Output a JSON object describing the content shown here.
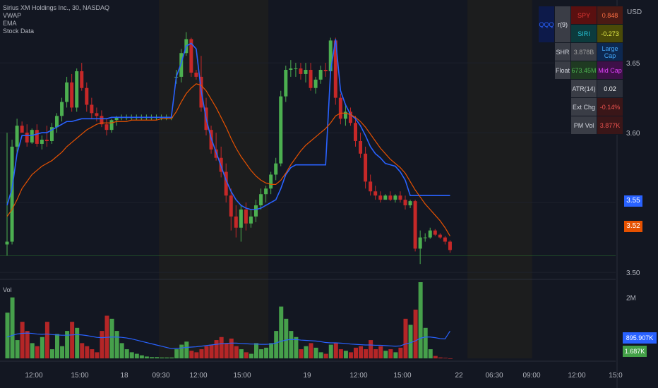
{
  "legend": {
    "symbol": "Sirius XM Holdings Inc., 30, NASDAQ",
    "indicators": [
      "VWAP",
      "EMA",
      "Stock Data"
    ],
    "volume_label": "Vol"
  },
  "currency": "USD",
  "colors": {
    "background": "#131722",
    "up": "#4caf50",
    "down": "#c62828",
    "vwap": "#2962ff",
    "ema": "#e65100",
    "grid": "#1e222d",
    "session_shade": "#1e1e1e"
  },
  "info_table": {
    "rows": [
      [
        "QQQ",
        "r(9)",
        "SPY",
        "0.848"
      ],
      [
        "",
        "",
        "SIRI",
        "-0.273"
      ],
      [
        "",
        "SHR",
        "3.878B",
        "Large Cap"
      ],
      [
        "",
        "Float",
        "673.45M",
        "Mid Cap"
      ],
      [
        "",
        "ATR(14)",
        "0.02",
        ""
      ],
      [
        "",
        "Ext Chg",
        "-0.14%",
        ""
      ],
      [
        "",
        "PM Vol",
        "3.877K",
        ""
      ]
    ]
  },
  "price_tags": {
    "vwap": "3.55",
    "last": "3.52",
    "vol_ma": "895.907K",
    "vol": "1.687K"
  },
  "chart_data": {
    "type": "candlestick",
    "title": "Sirius XM Holdings Inc., 30, NASDAQ",
    "price_axis": {
      "ticks": [
        "3.65",
        "3.60",
        "3.55",
        "3.50"
      ],
      "ylim": [
        3.495,
        3.695
      ]
    },
    "volume_axis": {
      "ticks": [
        "2M"
      ],
      "ylim": [
        0,
        2500000
      ]
    },
    "time_axis": {
      "ticks": [
        "12:00",
        "15:00",
        "18",
        "09:30",
        "12:00",
        "15:00",
        "19",
        "12:00",
        "15:00",
        "22",
        "06:30",
        "09:00",
        "12:00",
        "15:0"
      ]
    },
    "grid": true,
    "session_shade": [
      [
        31,
        53
      ],
      [
        93,
        106
      ],
      [
        145,
        158
      ]
    ],
    "candles": [
      {
        "o": 3.52,
        "h": 3.6,
        "l": 3.512,
        "c": 3.522
      },
      {
        "o": 3.522,
        "h": 3.595,
        "l": 3.52,
        "c": 3.59
      },
      {
        "o": 3.59,
        "h": 3.61,
        "l": 3.585,
        "c": 3.605
      },
      {
        "o": 3.605,
        "h": 3.608,
        "l": 3.6,
        "c": 3.6
      },
      {
        "o": 3.6,
        "h": 3.606,
        "l": 3.59,
        "c": 3.593
      },
      {
        "o": 3.593,
        "h": 3.603,
        "l": 3.592,
        "c": 3.602
      },
      {
        "o": 3.602,
        "h": 3.606,
        "l": 3.59,
        "c": 3.592
      },
      {
        "o": 3.592,
        "h": 3.598,
        "l": 3.588,
        "c": 3.595
      },
      {
        "o": 3.595,
        "h": 3.605,
        "l": 3.59,
        "c": 3.594
      },
      {
        "o": 3.594,
        "h": 3.607,
        "l": 3.592,
        "c": 3.604
      },
      {
        "o": 3.604,
        "h": 3.614,
        "l": 3.6,
        "c": 3.612
      },
      {
        "o": 3.612,
        "h": 3.625,
        "l": 3.608,
        "c": 3.622
      },
      {
        "o": 3.622,
        "h": 3.64,
        "l": 3.618,
        "c": 3.636
      },
      {
        "o": 3.636,
        "h": 3.642,
        "l": 3.615,
        "c": 3.618
      },
      {
        "o": 3.618,
        "h": 3.646,
        "l": 3.615,
        "c": 3.644
      },
      {
        "o": 3.644,
        "h": 3.65,
        "l": 3.63,
        "c": 3.632
      },
      {
        "o": 3.632,
        "h": 3.636,
        "l": 3.615,
        "c": 3.62
      },
      {
        "o": 3.62,
        "h": 3.625,
        "l": 3.61,
        "c": 3.614
      },
      {
        "o": 3.614,
        "h": 3.618,
        "l": 3.608,
        "c": 3.612
      },
      {
        "o": 3.612,
        "h": 3.616,
        "l": 3.604,
        "c": 3.606
      },
      {
        "o": 3.606,
        "h": 3.61,
        "l": 3.598,
        "c": 3.602
      },
      {
        "o": 3.602,
        "h": 3.61,
        "l": 3.6,
        "c": 3.609
      },
      {
        "o": 3.609,
        "h": 3.612,
        "l": 3.605,
        "c": 3.611
      },
      {
        "o": 3.611,
        "h": 3.613,
        "l": 3.609,
        "c": 3.611
      },
      {
        "o": 3.611,
        "h": 3.613,
        "l": 3.609,
        "c": 3.611
      },
      {
        "o": 3.611,
        "h": 3.613,
        "l": 3.609,
        "c": 3.611
      },
      {
        "o": 3.611,
        "h": 3.613,
        "l": 3.609,
        "c": 3.611
      },
      {
        "o": 3.611,
        "h": 3.613,
        "l": 3.609,
        "c": 3.611
      },
      {
        "o": 3.611,
        "h": 3.613,
        "l": 3.609,
        "c": 3.611
      },
      {
        "o": 3.611,
        "h": 3.613,
        "l": 3.609,
        "c": 3.611
      },
      {
        "o": 3.611,
        "h": 3.613,
        "l": 3.609,
        "c": 3.611
      },
      {
        "o": 3.611,
        "h": 3.613,
        "l": 3.609,
        "c": 3.611
      },
      {
        "o": 3.611,
        "h": 3.613,
        "l": 3.609,
        "c": 3.611
      },
      {
        "o": 3.611,
        "h": 3.613,
        "l": 3.609,
        "c": 3.611
      },
      {
        "o": 3.64,
        "h": 3.645,
        "l": 3.635,
        "c": 3.64
      },
      {
        "o": 3.64,
        "h": 3.66,
        "l": 3.636,
        "c": 3.657
      },
      {
        "o": 3.657,
        "h": 3.672,
        "l": 3.655,
        "c": 3.667
      },
      {
        "o": 3.667,
        "h": 3.668,
        "l": 3.64,
        "c": 3.643
      },
      {
        "o": 3.643,
        "h": 3.645,
        "l": 3.638,
        "c": 3.64
      },
      {
        "o": 3.64,
        "h": 3.655,
        "l": 3.615,
        "c": 3.618
      },
      {
        "o": 3.618,
        "h": 3.625,
        "l": 3.598,
        "c": 3.602
      },
      {
        "o": 3.602,
        "h": 3.605,
        "l": 3.585,
        "c": 3.588
      },
      {
        "o": 3.588,
        "h": 3.6,
        "l": 3.58,
        "c": 3.582
      },
      {
        "o": 3.582,
        "h": 3.59,
        "l": 3.568,
        "c": 3.572
      },
      {
        "o": 3.572,
        "h": 3.578,
        "l": 3.55,
        "c": 3.555
      },
      {
        "o": 3.555,
        "h": 3.56,
        "l": 3.53,
        "c": 3.54
      },
      {
        "o": 3.54,
        "h": 3.548,
        "l": 3.525,
        "c": 3.532
      },
      {
        "o": 3.532,
        "h": 3.548,
        "l": 3.522,
        "c": 3.545
      },
      {
        "o": 3.545,
        "h": 3.55,
        "l": 3.53,
        "c": 3.535
      },
      {
        "o": 3.535,
        "h": 3.545,
        "l": 3.532,
        "c": 3.54
      },
      {
        "o": 3.54,
        "h": 3.552,
        "l": 3.536,
        "c": 3.548
      },
      {
        "o": 3.548,
        "h": 3.56,
        "l": 3.545,
        "c": 3.556
      },
      {
        "o": 3.556,
        "h": 3.562,
        "l": 3.55,
        "c": 3.56
      },
      {
        "o": 3.56,
        "h": 3.572,
        "l": 3.556,
        "c": 3.57
      },
      {
        "o": 3.57,
        "h": 3.582,
        "l": 3.566,
        "c": 3.578
      },
      {
        "o": 3.578,
        "h": 3.63,
        "l": 3.576,
        "c": 3.626
      },
      {
        "o": 3.626,
        "h": 3.648,
        "l": 3.622,
        "c": 3.645
      },
      {
        "o": 3.645,
        "h": 3.652,
        "l": 3.64,
        "c": 3.646
      },
      {
        "o": 3.646,
        "h": 3.65,
        "l": 3.64,
        "c": 3.646
      },
      {
        "o": 3.646,
        "h": 3.65,
        "l": 3.638,
        "c": 3.642
      },
      {
        "o": 3.642,
        "h": 3.65,
        "l": 3.636,
        "c": 3.645
      },
      {
        "o": 3.645,
        "h": 3.65,
        "l": 3.63,
        "c": 3.632
      },
      {
        "o": 3.632,
        "h": 3.64,
        "l": 3.628,
        "c": 3.638
      },
      {
        "o": 3.638,
        "h": 3.648,
        "l": 3.635,
        "c": 3.645
      },
      {
        "o": 3.645,
        "h": 3.65,
        "l": 3.64,
        "c": 3.644
      },
      {
        "o": 3.644,
        "h": 3.668,
        "l": 3.642,
        "c": 3.666
      },
      {
        "o": 3.666,
        "h": 3.668,
        "l": 3.62,
        "c": 3.625
      },
      {
        "o": 3.625,
        "h": 3.628,
        "l": 3.606,
        "c": 3.61
      },
      {
        "o": 3.61,
        "h": 3.62,
        "l": 3.605,
        "c": 3.615
      },
      {
        "o": 3.615,
        "h": 3.618,
        "l": 3.605,
        "c": 3.607
      },
      {
        "o": 3.607,
        "h": 3.612,
        "l": 3.59,
        "c": 3.594
      },
      {
        "o": 3.594,
        "h": 3.6,
        "l": 3.582,
        "c": 3.585
      },
      {
        "o": 3.585,
        "h": 3.59,
        "l": 3.56,
        "c": 3.565
      },
      {
        "o": 3.565,
        "h": 3.57,
        "l": 3.555,
        "c": 3.558
      },
      {
        "o": 3.558,
        "h": 3.562,
        "l": 3.552,
        "c": 3.555
      },
      {
        "o": 3.555,
        "h": 3.558,
        "l": 3.55,
        "c": 3.552
      },
      {
        "o": 3.552,
        "h": 3.556,
        "l": 3.552,
        "c": 3.555
      },
      {
        "o": 3.555,
        "h": 3.558,
        "l": 3.551,
        "c": 3.552
      },
      {
        "o": 3.552,
        "h": 3.556,
        "l": 3.55,
        "c": 3.555
      },
      {
        "o": 3.555,
        "h": 3.558,
        "l": 3.55,
        "c": 3.552
      },
      {
        "o": 3.552,
        "h": 3.555,
        "l": 3.545,
        "c": 3.548
      },
      {
        "o": 3.548,
        "h": 3.552,
        "l": 3.546,
        "c": 3.551
      },
      {
        "o": 3.551,
        "h": 3.552,
        "l": 3.515,
        "c": 3.517
      },
      {
        "o": 3.517,
        "h": 3.53,
        "l": 3.506,
        "c": 3.525
      },
      {
        "o": 3.525,
        "h": 3.528,
        "l": 3.522,
        "c": 3.525
      },
      {
        "o": 3.525,
        "h": 3.532,
        "l": 3.524,
        "c": 3.53
      },
      {
        "o": 3.53,
        "h": 3.531,
        "l": 3.526,
        "c": 3.527
      },
      {
        "o": 3.527,
        "h": 3.528,
        "l": 3.524,
        "c": 3.525
      },
      {
        "o": 3.525,
        "h": 3.526,
        "l": 3.52,
        "c": 3.522
      },
      {
        "o": 3.522,
        "h": 3.523,
        "l": 3.514,
        "c": 3.516
      }
    ],
    "vwap": [
      3.548,
      3.56,
      3.585,
      3.598,
      3.598,
      3.598,
      3.599,
      3.6,
      3.6,
      3.602,
      3.604,
      3.606,
      3.608,
      3.608,
      3.609,
      3.61,
      3.61,
      3.61,
      3.61,
      3.61,
      3.61,
      3.611,
      3.611,
      3.611,
      3.611,
      3.611,
      3.611,
      3.611,
      3.611,
      3.611,
      3.611,
      3.611,
      3.611,
      3.611,
      3.64,
      3.65,
      3.662,
      3.664,
      3.66,
      3.63,
      3.61,
      3.596,
      3.586,
      3.576,
      3.566,
      3.558,
      3.552,
      3.548,
      3.546,
      3.545,
      3.545,
      3.546,
      3.548,
      3.55,
      3.552,
      3.56,
      3.57,
      3.575,
      3.577,
      3.577,
      3.577,
      3.577,
      3.577,
      3.577,
      3.577,
      3.644,
      3.667,
      3.63,
      3.62,
      3.613,
      3.61,
      3.605,
      3.598,
      3.59,
      3.585,
      3.582,
      3.578,
      3.577,
      3.576,
      3.572,
      3.566,
      3.555,
      3.555,
      3.555,
      3.555,
      3.555,
      3.555,
      3.555,
      3.555,
      3.555
    ],
    "ema": [
      3.54,
      3.545,
      3.552,
      3.56,
      3.565,
      3.57,
      3.573,
      3.576,
      3.578,
      3.58,
      3.583,
      3.586,
      3.59,
      3.593,
      3.596,
      3.599,
      3.602,
      3.604,
      3.606,
      3.607,
      3.607,
      3.607,
      3.608,
      3.608,
      3.608,
      3.609,
      3.609,
      3.609,
      3.609,
      3.609,
      3.609,
      3.61,
      3.61,
      3.61,
      3.615,
      3.622,
      3.628,
      3.632,
      3.635,
      3.634,
      3.63,
      3.624,
      3.618,
      3.611,
      3.604,
      3.596,
      3.589,
      3.583,
      3.578,
      3.573,
      3.569,
      3.566,
      3.564,
      3.563,
      3.563,
      3.566,
      3.571,
      3.577,
      3.582,
      3.587,
      3.591,
      3.594,
      3.597,
      3.6,
      3.603,
      3.607,
      3.612,
      3.614,
      3.614,
      3.613,
      3.611,
      3.608,
      3.604,
      3.599,
      3.594,
      3.589,
      3.585,
      3.581,
      3.578,
      3.575,
      3.571,
      3.565,
      3.559,
      3.554,
      3.549,
      3.545,
      3.541,
      3.537,
      3.532,
      3.526
    ],
    "volume": [
      1500000,
      2000000,
      600000,
      1200000,
      900000,
      500000,
      400000,
      700000,
      1200000,
      300000,
      800000,
      400000,
      900000,
      1200000,
      1000000,
      500000,
      400000,
      300000,
      200000,
      900000,
      1400000,
      1300000,
      900000,
      500000,
      300000,
      200000,
      150000,
      100000,
      60000,
      40000,
      40000,
      30000,
      30000,
      30000,
      300000,
      450000,
      550000,
      250000,
      200000,
      300000,
      400000,
      450000,
      600000,
      700000,
      500000,
      650000,
      400000,
      300000,
      200000,
      150000,
      500000,
      300000,
      350000,
      500000,
      900000,
      1700000,
      1300000,
      900000,
      700000,
      300000,
      400000,
      500000,
      350000,
      200000,
      150000,
      450000,
      500000,
      300000,
      250000,
      200000,
      350000,
      400000,
      300000,
      600000,
      300000,
      400000,
      250000,
      300000,
      200000,
      350000,
      1300000,
      1100000,
      1600000,
      2500000,
      1000000,
      300000,
      80000,
      30000,
      20000,
      1687
    ],
    "volume_ma": [
      700000,
      750000,
      800000,
      820000,
      830000,
      820000,
      800000,
      790000,
      800000,
      780000,
      770000,
      760000,
      760000,
      770000,
      780000,
      770000,
      750000,
      720000,
      690000,
      680000,
      690000,
      700000,
      700000,
      690000,
      670000,
      640000,
      600000,
      560000,
      520000,
      480000,
      440000,
      400000,
      360000,
      320000,
      330000,
      340000,
      360000,
      370000,
      380000,
      400000,
      420000,
      440000,
      460000,
      480000,
      490000,
      500000,
      500000,
      490000,
      480000,
      470000,
      470000,
      460000,
      460000,
      470000,
      500000,
      560000,
      600000,
      620000,
      620000,
      600000,
      590000,
      580000,
      570000,
      550000,
      520000,
      510000,
      510000,
      500000,
      490000,
      470000,
      460000,
      450000,
      440000,
      440000,
      430000,
      430000,
      420000,
      410000,
      400000,
      410000,
      470000,
      510000,
      570000,
      660000,
      700000,
      700000,
      680000,
      650000,
      640000,
      895907
    ]
  }
}
